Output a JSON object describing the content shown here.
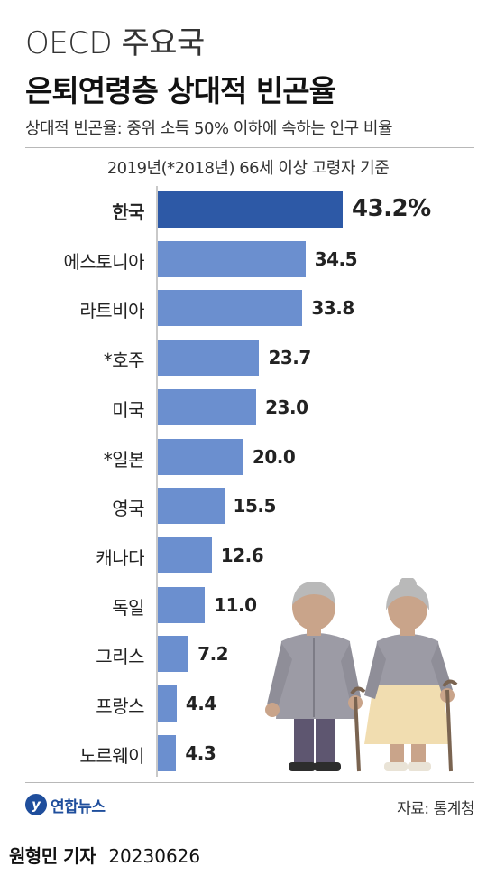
{
  "header": {
    "title_line1": "OECD 주요국",
    "title_line2": "은퇴연령층 상대적 빈곤율",
    "subtitle": "상대적 빈곤율: 중위 소득 50% 이하에 속하는 인구 비율"
  },
  "chart_data": {
    "type": "bar",
    "orientation": "horizontal",
    "basis": "2019년(*2018년) 66세 이상 고령자 기준",
    "categories": [
      "한국",
      "에스토니아",
      "라트비아",
      "*호주",
      "미국",
      "*일본",
      "영국",
      "캐나다",
      "독일",
      "그리스",
      "프랑스",
      "노르웨이"
    ],
    "values": [
      43.2,
      34.5,
      33.8,
      23.7,
      23.0,
      20.0,
      15.5,
      12.6,
      11.0,
      7.2,
      4.4,
      4.3
    ],
    "value_labels": [
      "43.2%",
      "34.5",
      "33.8",
      "23.7",
      "23.0",
      "20.0",
      "15.5",
      "12.6",
      "11.0",
      "7.2",
      "4.4",
      "4.3"
    ],
    "highlight_index": 0,
    "colors": {
      "highlight": "#2d59a6",
      "default": "#6b8fcf"
    },
    "xlim": [
      0,
      45
    ]
  },
  "footer": {
    "logo_mark": "y",
    "logo_text": "연합뉴스",
    "source": "자료: 통계청",
    "reporter": "원형민 기자",
    "date": "20230626"
  },
  "illustration": {
    "icon": "elderly-couple-icon"
  }
}
